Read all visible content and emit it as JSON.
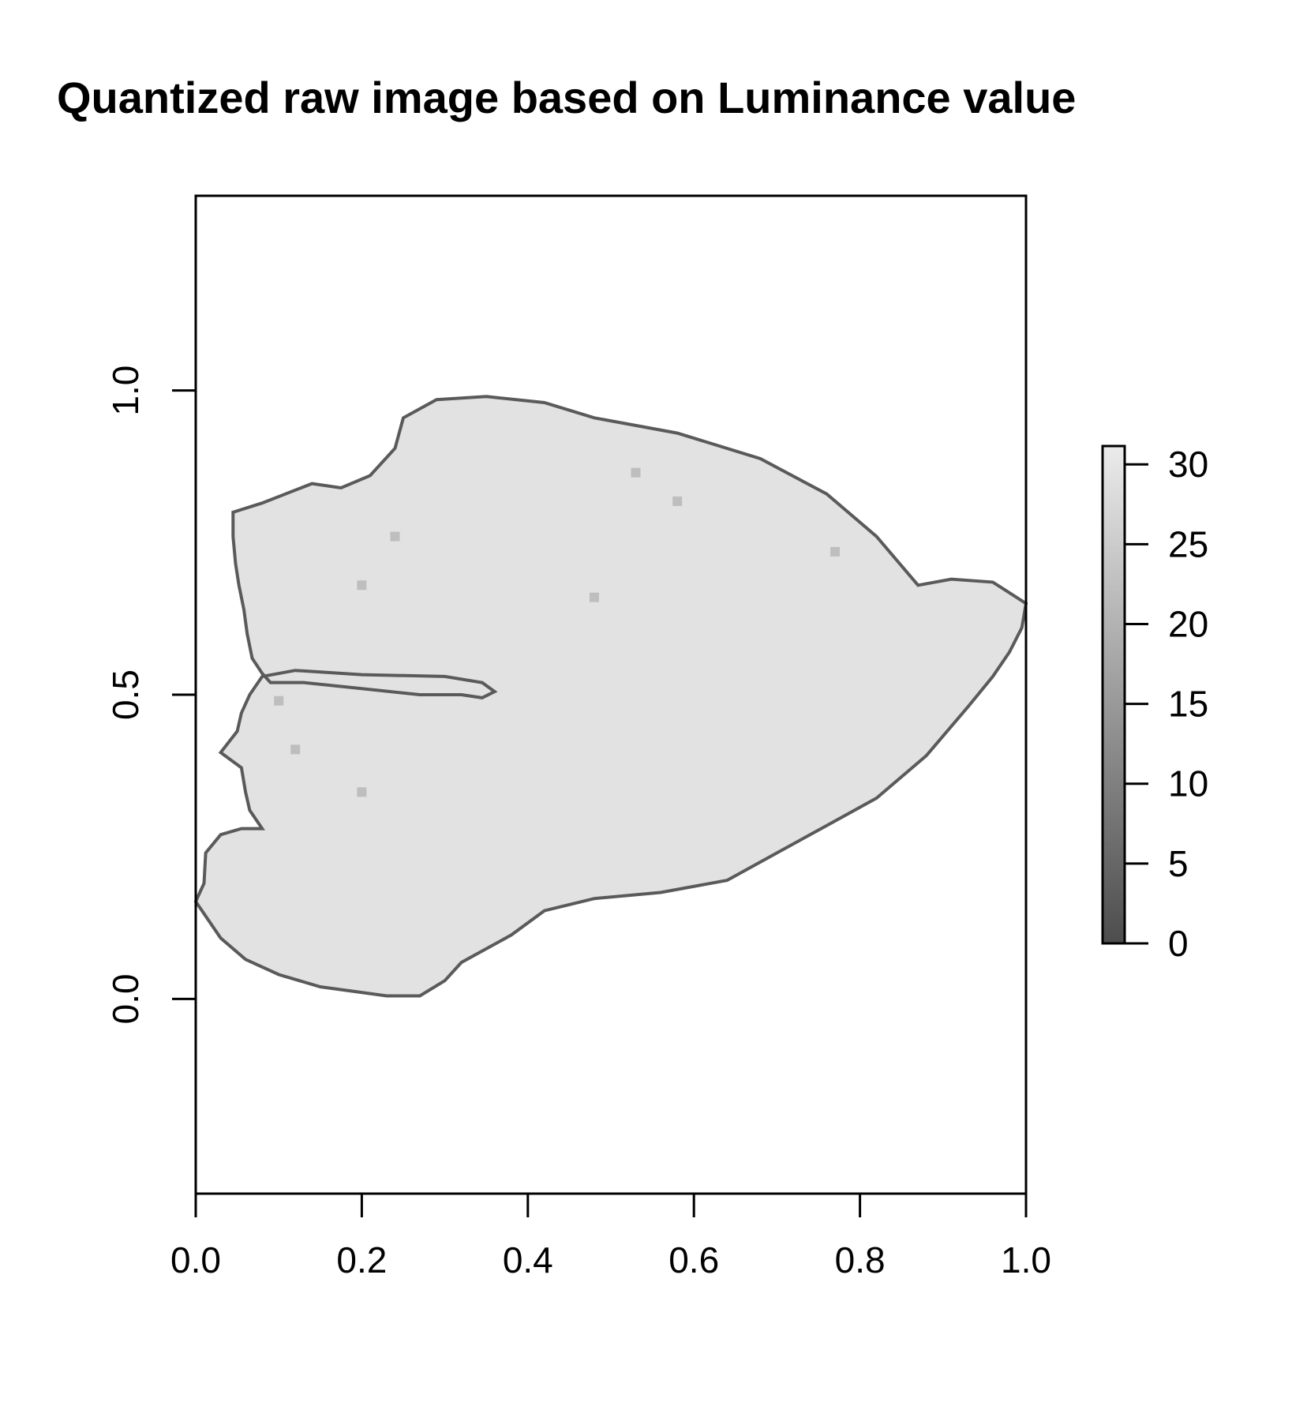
{
  "chart_data": {
    "type": "heatmap",
    "title": "Quantized raw image based on Luminance value",
    "xlabel": "",
    "ylabel": "",
    "xlim": [
      0.0,
      1.0
    ],
    "ylim": [
      -0.32,
      1.32
    ],
    "x_ticks": [
      {
        "value": 0.0,
        "label": "0.0"
      },
      {
        "value": 0.2,
        "label": "0.2"
      },
      {
        "value": 0.4,
        "label": "0.4"
      },
      {
        "value": 0.6,
        "label": "0.6"
      },
      {
        "value": 0.8,
        "label": "0.8"
      },
      {
        "value": 1.0,
        "label": "1.0"
      }
    ],
    "y_ticks": [
      {
        "value": 0.0,
        "label": "0.0"
      },
      {
        "value": 0.5,
        "label": "0.5"
      },
      {
        "value": 1.0,
        "label": "1.0"
      }
    ],
    "colorbar": {
      "min": 0,
      "max": 31,
      "ticks": [
        {
          "value": 0,
          "label": "0"
        },
        {
          "value": 5,
          "label": "5"
        },
        {
          "value": 10,
          "label": "10"
        },
        {
          "value": 15,
          "label": "15"
        },
        {
          "value": 20,
          "label": "20"
        },
        {
          "value": 25,
          "label": "25"
        },
        {
          "value": 30,
          "label": "30"
        }
      ],
      "color_low": "#4d4d4d",
      "color_high": "#ebebeb"
    },
    "region": {
      "description_value_range": [
        22,
        30
      ],
      "fill_color": "#e2e2e2",
      "edge_color": "#5a5a5a",
      "outline": [
        [
          0.0,
          0.16
        ],
        [
          0.01,
          0.19
        ],
        [
          0.012,
          0.24
        ],
        [
          0.03,
          0.27
        ],
        [
          0.055,
          0.28
        ],
        [
          0.08,
          0.28
        ],
        [
          0.065,
          0.31
        ],
        [
          0.06,
          0.34
        ],
        [
          0.055,
          0.38
        ],
        [
          0.03,
          0.405
        ],
        [
          0.05,
          0.44
        ],
        [
          0.055,
          0.47
        ],
        [
          0.065,
          0.5
        ],
        [
          0.08,
          0.53
        ],
        [
          0.12,
          0.54
        ],
        [
          0.2,
          0.533
        ],
        [
          0.3,
          0.53
        ],
        [
          0.345,
          0.52
        ],
        [
          0.36,
          0.505
        ],
        [
          0.345,
          0.495
        ],
        [
          0.32,
          0.5
        ],
        [
          0.27,
          0.5
        ],
        [
          0.2,
          0.51
        ],
        [
          0.13,
          0.52
        ],
        [
          0.09,
          0.52
        ],
        [
          0.08,
          0.535
        ],
        [
          0.068,
          0.56
        ],
        [
          0.062,
          0.6
        ],
        [
          0.058,
          0.64
        ],
        [
          0.052,
          0.68
        ],
        [
          0.048,
          0.715
        ],
        [
          0.045,
          0.76
        ],
        [
          0.045,
          0.8
        ],
        [
          0.08,
          0.815
        ],
        [
          0.14,
          0.847
        ],
        [
          0.175,
          0.84
        ],
        [
          0.21,
          0.86
        ],
        [
          0.24,
          0.905
        ],
        [
          0.25,
          0.955
        ],
        [
          0.29,
          0.985
        ],
        [
          0.35,
          0.99
        ],
        [
          0.42,
          0.98
        ],
        [
          0.48,
          0.955
        ],
        [
          0.58,
          0.93
        ],
        [
          0.68,
          0.888
        ],
        [
          0.76,
          0.83
        ],
        [
          0.82,
          0.76
        ],
        [
          0.87,
          0.68
        ],
        [
          0.91,
          0.69
        ],
        [
          0.96,
          0.685
        ],
        [
          1.0,
          0.65
        ],
        [
          0.995,
          0.61
        ],
        [
          0.98,
          0.57
        ],
        [
          0.96,
          0.53
        ],
        [
          0.93,
          0.48
        ],
        [
          0.88,
          0.4
        ],
        [
          0.82,
          0.33
        ],
        [
          0.76,
          0.285
        ],
        [
          0.7,
          0.24
        ],
        [
          0.64,
          0.195
        ],
        [
          0.56,
          0.175
        ],
        [
          0.48,
          0.165
        ],
        [
          0.42,
          0.145
        ],
        [
          0.38,
          0.105
        ],
        [
          0.36,
          0.09
        ],
        [
          0.32,
          0.06
        ],
        [
          0.3,
          0.03
        ],
        [
          0.27,
          0.005
        ],
        [
          0.23,
          0.005
        ],
        [
          0.15,
          0.02
        ],
        [
          0.1,
          0.04
        ],
        [
          0.06,
          0.065
        ],
        [
          0.03,
          0.1
        ]
      ],
      "dark_specks": [
        [
          0.1,
          0.49
        ],
        [
          0.12,
          0.41
        ],
        [
          0.2,
          0.34
        ],
        [
          0.24,
          0.76
        ],
        [
          0.2,
          0.68
        ],
        [
          0.58,
          0.818
        ],
        [
          0.53,
          0.865
        ],
        [
          0.77,
          0.735
        ],
        [
          0.48,
          0.66
        ]
      ]
    }
  }
}
